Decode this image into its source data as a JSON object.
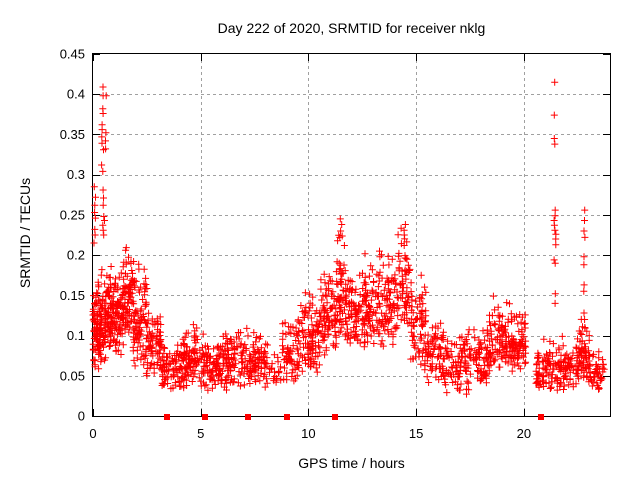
{
  "chart_data": {
    "type": "scatter",
    "title": "Day 222 of 2020, SRMTID for receiver nklg",
    "xlabel": "GPS time / hours",
    "ylabel": "SRMTID / TECUs",
    "xlim": [
      0,
      24
    ],
    "ylim": [
      0,
      0.45
    ],
    "xticks": [
      0,
      5,
      10,
      15,
      20
    ],
    "xtick_labels": [
      "0",
      "5",
      "10",
      "15",
      "20"
    ],
    "yticks": [
      0,
      0.05,
      0.1,
      0.15,
      0.2,
      0.25,
      0.3,
      0.35,
      0.4,
      0.45
    ],
    "ytick_labels": [
      "0",
      "0.05",
      "0.1",
      "0.15",
      "0.2",
      "0.25",
      "0.3",
      "0.35",
      "0.4",
      "0.45"
    ],
    "grid": true,
    "legend": "none",
    "marker": {
      "shape": "plus",
      "size": 7
    },
    "colors": {
      "marker": "#ff0000",
      "grid": "#a0a0a0",
      "axis": "#000000",
      "text": "#000000",
      "background": "#ffffff"
    },
    "seed": 42,
    "series": [
      {
        "name": "srmtid-scatter",
        "kind": "density-bands",
        "comment": "each band = [t_start_h, t_end_h, y_min_TECU, y_max_TECU, n_points]",
        "bands": [
          [
            0.0,
            0.35,
            0.055,
            0.175,
            80
          ],
          [
            0.3,
            0.85,
            0.065,
            0.19,
            95
          ],
          [
            0.8,
            1.45,
            0.075,
            0.19,
            105
          ],
          [
            1.4,
            1.9,
            0.09,
            0.215,
            75
          ],
          [
            1.85,
            2.5,
            0.06,
            0.2,
            85
          ],
          [
            2.45,
            3.15,
            0.045,
            0.155,
            75
          ],
          [
            3.1,
            4.25,
            0.03,
            0.105,
            90
          ],
          [
            4.2,
            5.15,
            0.035,
            0.115,
            85
          ],
          [
            5.1,
            6.2,
            0.03,
            0.105,
            95
          ],
          [
            6.15,
            7.3,
            0.035,
            0.115,
            95
          ],
          [
            7.25,
            8.15,
            0.035,
            0.105,
            70
          ],
          [
            8.15,
            8.75,
            0.03,
            0.085,
            20
          ],
          [
            8.75,
            9.55,
            0.04,
            0.135,
            65
          ],
          [
            9.5,
            10.55,
            0.05,
            0.16,
            100
          ],
          [
            10.5,
            11.35,
            0.07,
            0.19,
            90
          ],
          [
            11.3,
            11.75,
            0.1,
            0.235,
            55
          ],
          [
            11.7,
            12.65,
            0.08,
            0.185,
            95
          ],
          [
            12.6,
            14.15,
            0.085,
            0.205,
            150
          ],
          [
            14.15,
            14.75,
            0.11,
            0.238,
            60
          ],
          [
            14.75,
            15.45,
            0.06,
            0.17,
            65
          ],
          [
            15.4,
            16.35,
            0.04,
            0.125,
            75
          ],
          [
            16.3,
            17.45,
            0.025,
            0.115,
            85
          ],
          [
            17.4,
            18.45,
            0.04,
            0.125,
            80
          ],
          [
            18.4,
            19.45,
            0.055,
            0.155,
            95
          ],
          [
            19.4,
            20.1,
            0.055,
            0.135,
            70
          ],
          [
            20.55,
            21.4,
            0.025,
            0.1,
            70
          ],
          [
            21.45,
            22.55,
            0.03,
            0.1,
            90
          ],
          [
            22.55,
            23.05,
            0.045,
            0.125,
            55
          ],
          [
            23.0,
            23.75,
            0.03,
            0.09,
            45
          ]
        ]
      },
      {
        "name": "srmtid-outlier-columns",
        "kind": "columns",
        "columns": [
          {
            "t": 0.1,
            "spread": 0.12,
            "ys": [
              0.285,
              0.272,
              0.262,
              0.253,
              0.246,
              0.232,
              0.225,
              0.215
            ]
          },
          {
            "t": 0.45,
            "spread": 0.1,
            "ys": [
              0.409,
              0.398,
              0.382,
              0.376,
              0.362,
              0.356,
              0.347,
              0.339,
              0.331,
              0.312,
              0.304,
              0.281,
              0.271,
              0.262
            ]
          },
          {
            "t": 0.62,
            "spread": 0.08,
            "ys": [
              0.398,
              0.352,
              0.342,
              0.332
            ]
          },
          {
            "t": 0.5,
            "spread": 0.1,
            "ys": [
              0.248,
              0.243,
              0.237,
              0.231,
              0.225
            ]
          },
          {
            "t": 11.5,
            "spread": 0.1,
            "ys": [
              0.245,
              0.238,
              0.23,
              0.222
            ]
          },
          {
            "t": 13.3,
            "spread": 0.06,
            "ys": [
              0.205,
              0.198
            ]
          },
          {
            "t": 14.5,
            "spread": 0.12,
            "ys": [
              0.238,
              0.231,
              0.225,
              0.212
            ]
          },
          {
            "t": 15.25,
            "spread": 0.04,
            "ys": [
              0.175
            ]
          },
          {
            "t": 21.45,
            "spread": 0.09,
            "ys": [
              0.415,
              0.374,
              0.345,
              0.338,
              0.256,
              0.249,
              0.243,
              0.237,
              0.231,
              0.226,
              0.22,
              0.213,
              0.194,
              0.19,
              0.152,
              0.14
            ]
          },
          {
            "t": 22.8,
            "spread": 0.07,
            "ys": [
              0.256,
              0.243,
              0.23,
              0.222,
              0.198,
              0.188,
              0.163,
              0.155,
              0.128,
              0.12,
              0.11
            ]
          }
        ]
      },
      {
        "name": "zero-line-flags",
        "kind": "squares",
        "marker": "filled-square",
        "t": [
          3.45,
          5.22,
          7.2,
          9.02,
          11.25,
          20.8
        ]
      }
    ]
  }
}
